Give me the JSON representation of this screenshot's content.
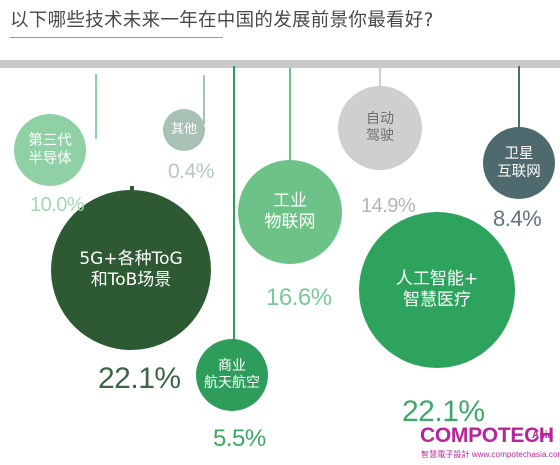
{
  "question": "以下哪些技术未来一年在中国的发展前景你最看好?",
  "chart_data": {
    "type": "bubble",
    "title": "以下哪些技术未来一年在中国的发展前景你最看好?",
    "unit": "%",
    "items": [
      {
        "id": "semiconductor",
        "label_lines": [
          "第三代",
          "半导体"
        ],
        "value": 10.0,
        "value_label": "10.0%",
        "color": "#8fd0a5"
      },
      {
        "id": "tob5g",
        "label_lines": [
          "5G+各种ToG",
          "和ToB场景"
        ],
        "value": 22.1,
        "value_label": "22.1%",
        "color": "#2d5a33"
      },
      {
        "id": "other",
        "label_lines": [
          "其他"
        ],
        "value": 0.4,
        "value_label": "0.4%",
        "color": "#a7c1b5"
      },
      {
        "id": "aerospace",
        "label_lines": [
          "商业",
          "航天航空"
        ],
        "value": 5.5,
        "value_label": "5.5%",
        "color": "#2e9c5a"
      },
      {
        "id": "iot",
        "label_lines": [
          "工业",
          "物联网"
        ],
        "value": 16.6,
        "value_label": "16.6%",
        "color": "#6cc287"
      },
      {
        "id": "autodrive",
        "label_lines": [
          "自动",
          "驾驶"
        ],
        "value": 14.9,
        "value_label": "14.9%",
        "color": "#cfcfcf"
      },
      {
        "id": "ai_health",
        "label_lines": [
          "人工智能+",
          "智慧医疗"
        ],
        "value": 22.1,
        "value_label": "22.1%",
        "color": "#2ea35e"
      },
      {
        "id": "satellite",
        "label_lines": [
          "卫星",
          "互联网"
        ],
        "value": 8.4,
        "value_label": "8.4%",
        "color": "#4e6a6e"
      }
    ]
  },
  "logo": {
    "main": "COMPOTECH",
    "suffix": "Asia",
    "sub": "智慧電子設計 www.compotechasia.com"
  }
}
